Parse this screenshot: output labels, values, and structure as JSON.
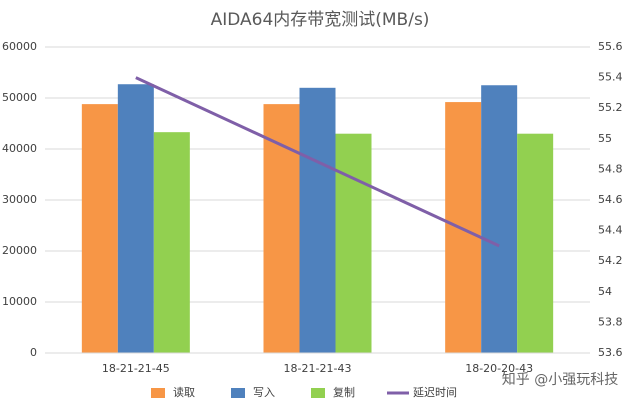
{
  "chart_data": {
    "type": "bar",
    "title": "AIDA64内存带宽测试(MB/s)",
    "categories": [
      "18-21-21-45",
      "18-21-21-43",
      "18-20-20-43"
    ],
    "series": [
      {
        "name": "读取",
        "color": "#f79646",
        "values": [
          48800,
          48800,
          49200
        ]
      },
      {
        "name": "写入",
        "color": "#4f81bd",
        "values": [
          52700,
          52000,
          52500
        ]
      },
      {
        "name": "复制",
        "color": "#92d050",
        "values": [
          43300,
          43000,
          43000
        ]
      },
      {
        "name": "延迟时间",
        "color": "#7f5fa8",
        "type": "line",
        "axis": "y2",
        "values": [
          55.4,
          54.85,
          54.3
        ]
      }
    ],
    "ylim": [
      0,
      60000
    ],
    "yticks": [
      0,
      10000,
      20000,
      30000,
      40000,
      50000,
      60000
    ],
    "y2lim": [
      53.6,
      55.6
    ],
    "y2ticks": [
      53.6,
      53.8,
      54,
      54.2,
      54.4,
      54.6,
      54.8,
      55,
      55.2,
      55.4,
      55.6
    ],
    "grid": true,
    "legend": "bottom",
    "watermark": "知乎 @小强玩科技"
  }
}
